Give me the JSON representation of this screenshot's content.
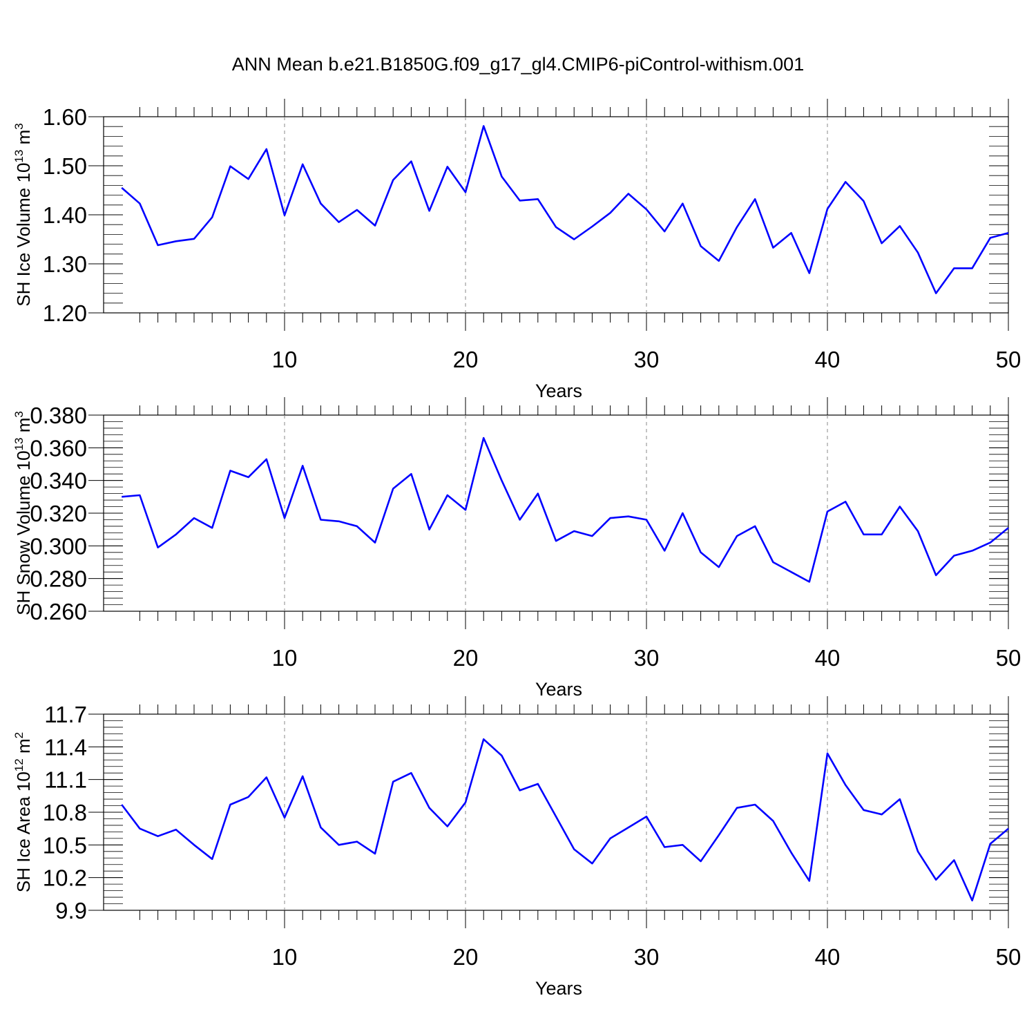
{
  "title": "ANN Mean b.e21.B1850G.f09_g17_gl4.CMIP6-piControl-withism.001",
  "line_color": "#0000ff",
  "chart_data": [
    {
      "type": "line",
      "ylabel": "SH Ice Volume 10",
      "ylabel_exp": "13",
      "ylabel_unit": " m",
      "ylabel_unit_exp": "3",
      "xlabel": "Years",
      "xlim": [
        1,
        50
      ],
      "ylim": [
        1.2,
        1.6
      ],
      "xticks": [
        10,
        20,
        30,
        40,
        50
      ],
      "xticklabels": [
        "10",
        "20",
        "30",
        "40",
        "50"
      ],
      "yticks": [
        1.2,
        1.3,
        1.4,
        1.5,
        1.6
      ],
      "yticklabels": [
        "1.20",
        "1.30",
        "1.40",
        "1.50",
        "1.60"
      ],
      "ytick_minor_step": 0.02,
      "x": [
        1,
        2,
        3,
        4,
        5,
        6,
        7,
        8,
        9,
        10,
        11,
        12,
        13,
        14,
        15,
        16,
        17,
        18,
        19,
        20,
        21,
        22,
        23,
        24,
        25,
        26,
        27,
        28,
        29,
        30,
        31,
        32,
        33,
        34,
        35,
        36,
        37,
        38,
        39,
        40,
        41,
        42,
        43,
        44,
        45,
        46,
        47,
        48,
        49,
        50
      ],
      "values": [
        1.455,
        1.423,
        1.338,
        1.346,
        1.351,
        1.395,
        1.499,
        1.473,
        1.534,
        1.399,
        1.503,
        1.423,
        1.385,
        1.41,
        1.378,
        1.471,
        1.509,
        1.408,
        1.498,
        1.446,
        1.581,
        1.478,
        1.429,
        1.432,
        1.375,
        1.35,
        1.376,
        1.404,
        1.443,
        1.411,
        1.366,
        1.423,
        1.336,
        1.306,
        1.375,
        1.432,
        1.333,
        1.363,
        1.281,
        1.412,
        1.467,
        1.428,
        1.342,
        1.377,
        1.323,
        1.24,
        1.291,
        1.291,
        1.353,
        1.363
      ]
    },
    {
      "type": "line",
      "ylabel": "SH Snow Volume 10",
      "ylabel_exp": "13",
      "ylabel_unit": " m",
      "ylabel_unit_exp": "3",
      "xlabel": "Years",
      "xlim": [
        1,
        50
      ],
      "ylim": [
        0.26,
        0.38
      ],
      "xticks": [
        10,
        20,
        30,
        40,
        50
      ],
      "xticklabels": [
        "10",
        "20",
        "30",
        "40",
        "50"
      ],
      "yticks": [
        0.26,
        0.28,
        0.3,
        0.32,
        0.34,
        0.36,
        0.38
      ],
      "yticklabels": [
        "0.260",
        "0.280",
        "0.300",
        "0.320",
        "0.340",
        "0.360",
        "0.380"
      ],
      "ytick_minor_step": 0.004,
      "x": [
        1,
        2,
        3,
        4,
        5,
        6,
        7,
        8,
        9,
        10,
        11,
        12,
        13,
        14,
        15,
        16,
        17,
        18,
        19,
        20,
        21,
        22,
        23,
        24,
        25,
        26,
        27,
        28,
        29,
        30,
        31,
        32,
        33,
        34,
        35,
        36,
        37,
        38,
        39,
        40,
        41,
        42,
        43,
        44,
        45,
        46,
        47,
        48,
        49,
        50
      ],
      "values": [
        0.33,
        0.331,
        0.299,
        0.307,
        0.317,
        0.311,
        0.346,
        0.342,
        0.353,
        0.317,
        0.349,
        0.316,
        0.315,
        0.312,
        0.302,
        0.335,
        0.344,
        0.31,
        0.331,
        0.322,
        0.366,
        0.34,
        0.316,
        0.332,
        0.303,
        0.309,
        0.306,
        0.317,
        0.318,
        0.316,
        0.297,
        0.32,
        0.296,
        0.287,
        0.306,
        0.312,
        0.29,
        0.284,
        0.278,
        0.321,
        0.327,
        0.307,
        0.307,
        0.324,
        0.309,
        0.282,
        0.294,
        0.297,
        0.302,
        0.311
      ]
    },
    {
      "type": "line",
      "ylabel": "SH Ice Area 10",
      "ylabel_exp": "12",
      "ylabel_unit": " m",
      "ylabel_unit_exp": "2",
      "xlabel": "Years",
      "xlim": [
        1,
        50
      ],
      "ylim": [
        9.9,
        11.7
      ],
      "xticks": [
        10,
        20,
        30,
        40,
        50
      ],
      "xticklabels": [
        "10",
        "20",
        "30",
        "40",
        "50"
      ],
      "yticks": [
        9.9,
        10.2,
        10.5,
        10.8,
        11.1,
        11.4,
        11.7
      ],
      "yticklabels": [
        "9.9",
        "10.2",
        "10.5",
        "10.8",
        "11.1",
        "11.4",
        "11.7"
      ],
      "ytick_minor_step": 0.06,
      "x": [
        1,
        2,
        3,
        4,
        5,
        6,
        7,
        8,
        9,
        10,
        11,
        12,
        13,
        14,
        15,
        16,
        17,
        18,
        19,
        20,
        21,
        22,
        23,
        24,
        25,
        26,
        27,
        28,
        29,
        30,
        31,
        32,
        33,
        34,
        35,
        36,
        37,
        38,
        39,
        40,
        41,
        42,
        43,
        44,
        45,
        46,
        47,
        48,
        49,
        50
      ],
      "values": [
        10.87,
        10.65,
        10.58,
        10.64,
        10.5,
        10.37,
        10.87,
        10.94,
        11.12,
        10.75,
        11.13,
        10.66,
        10.5,
        10.53,
        10.42,
        11.08,
        11.16,
        10.84,
        10.67,
        10.89,
        11.47,
        11.32,
        11.0,
        11.06,
        10.76,
        10.46,
        10.33,
        10.56,
        10.66,
        10.76,
        10.48,
        10.5,
        10.35,
        10.59,
        10.84,
        10.87,
        10.72,
        10.43,
        10.17,
        11.34,
        11.05,
        10.82,
        10.78,
        10.92,
        10.44,
        10.18,
        10.36,
        9.99,
        10.51,
        10.65
      ]
    }
  ]
}
